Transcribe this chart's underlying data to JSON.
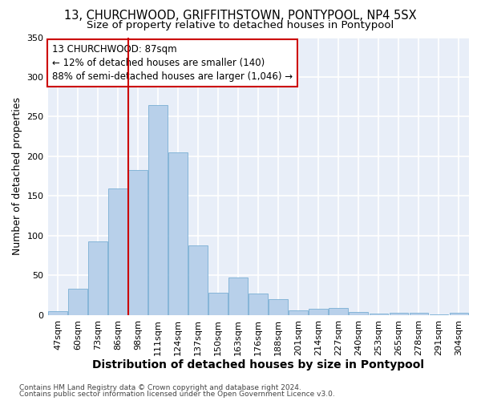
{
  "title": "13, CHURCHWOOD, GRIFFITHSTOWN, PONTYPOOL, NP4 5SX",
  "subtitle": "Size of property relative to detached houses in Pontypool",
  "xlabel": "Distribution of detached houses by size in Pontypool",
  "ylabel": "Number of detached properties",
  "categories": [
    "47sqm",
    "60sqm",
    "73sqm",
    "86sqm",
    "98sqm",
    "111sqm",
    "124sqm",
    "137sqm",
    "150sqm",
    "163sqm",
    "176sqm",
    "188sqm",
    "201sqm",
    "214sqm",
    "227sqm",
    "240sqm",
    "253sqm",
    "265sqm",
    "278sqm",
    "291sqm",
    "304sqm"
  ],
  "values": [
    5,
    33,
    93,
    160,
    183,
    265,
    205,
    88,
    28,
    47,
    27,
    20,
    6,
    8,
    9,
    4,
    2,
    3,
    3,
    1,
    3
  ],
  "bar_color": "#b8d0ea",
  "bar_edge_color": "#7aafd4",
  "annotation_line_1": "13 CHURCHWOOD: 87sqm",
  "annotation_line_2": "← 12% of detached houses are smaller (140)",
  "annotation_line_3": "88% of semi-detached houses are larger (1,046) →",
  "vline_color": "#cc0000",
  "vline_position": 3.5,
  "footnote1": "Contains HM Land Registry data © Crown copyright and database right 2024.",
  "footnote2": "Contains public sector information licensed under the Open Government Licence v3.0.",
  "ylim": [
    0,
    350
  ],
  "background_color": "#e8eef8",
  "grid_color": "#ffffff",
  "title_fontsize": 10.5,
  "subtitle_fontsize": 9.5,
  "xlabel_fontsize": 10,
  "ylabel_fontsize": 9,
  "tick_fontsize": 8,
  "footnote_fontsize": 6.5
}
